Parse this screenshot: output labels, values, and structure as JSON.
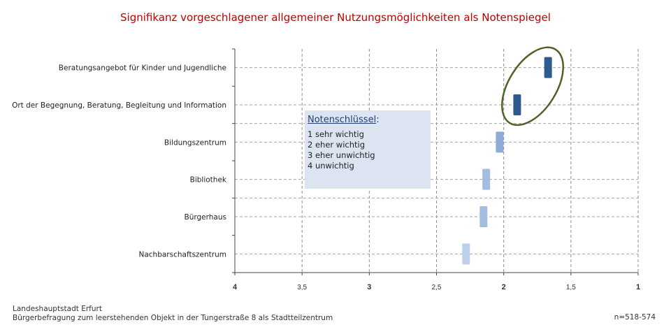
{
  "chart_data": {
    "type": "bar",
    "title": "Signifikanz vorgeschlagener allgemeiner Nutzungsmöglichkeiten als Notenspiegel",
    "orientation": "horizontal",
    "x_reversed": true,
    "xlim": [
      4,
      1
    ],
    "x_ticks": [
      "4",
      "3,5",
      "3",
      "2,5",
      "2",
      "1,5",
      "1"
    ],
    "x_tick_values": [
      4,
      3.5,
      3,
      2.5,
      2,
      1.5,
      1
    ],
    "grid": true,
    "categories": [
      "Beratungsangebot für Kinder und Jugendliche",
      "Ort der Begegnung, Beratung, Begleitung und Information",
      "Bildungszentrum",
      "Bibliothek",
      "Bürgerhaus",
      "Nachbarschaftszentrum"
    ],
    "values": [
      1.67,
      1.9,
      2.03,
      2.13,
      2.15,
      2.28
    ],
    "bar_colors": [
      "#2f5a8f",
      "#2f5a8f",
      "#8eacd6",
      "#a3bde0",
      "#a3bde0",
      "#bdd0ea"
    ],
    "highlight_color": "#4f6228"
  },
  "key": {
    "title": "Notenschlüssel",
    "title_suffix": ":",
    "items": [
      "1  sehr wichtig",
      "2  eher wichtig",
      "3  eher unwichtig",
      "4  unwichtig"
    ]
  },
  "footer": {
    "source_line1": "Landeshauptstadt Erfurt",
    "source_line2": "Bürgerbefragung  zum leerstehenden  Objekt in der Tungerstraße  8 als Stadtteilzentrum",
    "n": "n=518-574"
  }
}
